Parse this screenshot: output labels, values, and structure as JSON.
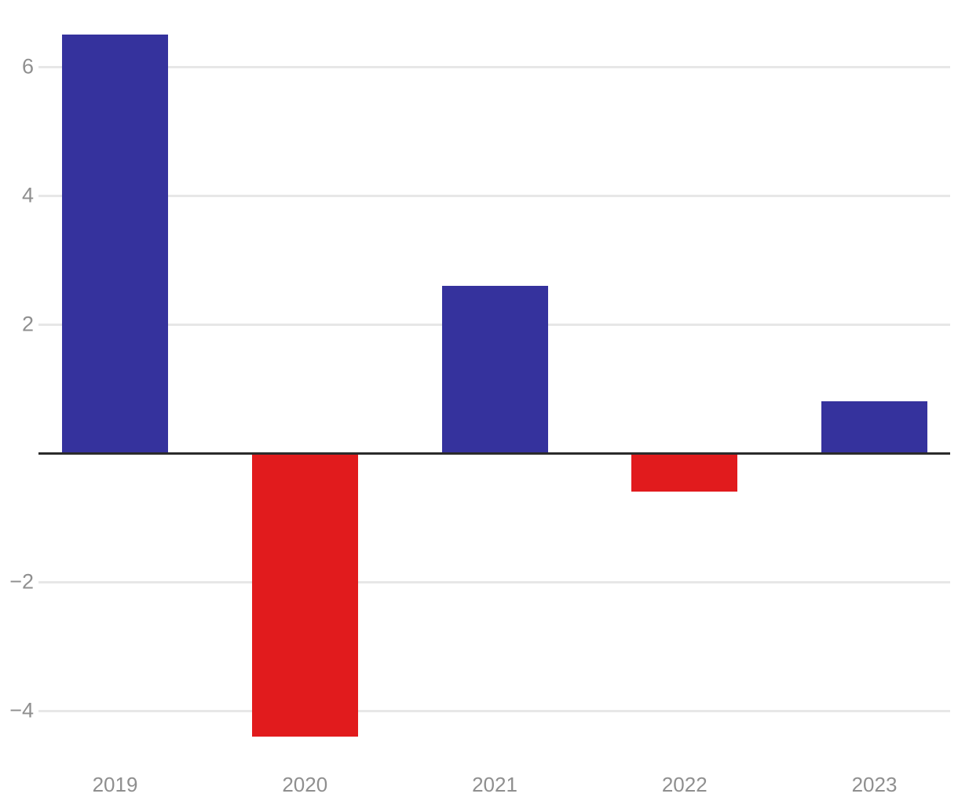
{
  "chart_data": {
    "type": "bar",
    "title": "",
    "xlabel": "",
    "ylabel": "",
    "categories": [
      "2019",
      "2020",
      "2021",
      "2022",
      "2023"
    ],
    "values": [
      6.5,
      -4.4,
      2.6,
      -0.6,
      0.8
    ],
    "ylim": [
      -5,
      7
    ],
    "yticks": [
      6,
      4,
      2,
      -2,
      -4
    ],
    "ytick_labels": [
      "6",
      "4",
      "2",
      "−2",
      "−4"
    ],
    "grid": true,
    "legend": "none",
    "colors": {
      "positive": "#35329d",
      "negative": "#e11b1d"
    },
    "axis": {
      "gridline_color": "#e7e7e7",
      "zero_line_color": "#2b2b2b",
      "tick_label_color": "#8f8f8f"
    }
  }
}
